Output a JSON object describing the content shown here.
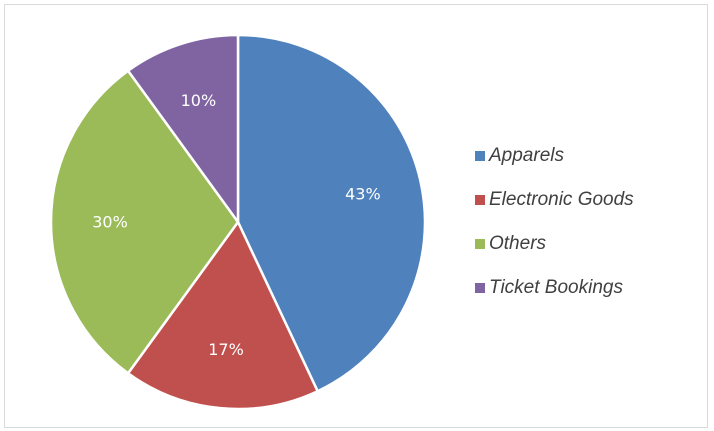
{
  "chart_data": {
    "type": "pie",
    "categories": [
      "Apparels",
      "Electronic Goods",
      "Others",
      "Ticket Bookings"
    ],
    "values": [
      43,
      17,
      30,
      10
    ],
    "labels": [
      "43%",
      "17%",
      "30%",
      "10%"
    ],
    "colors": [
      "#4f81bd",
      "#c0504d",
      "#9bbb59",
      "#8064a2"
    ],
    "start_angle_deg": 0,
    "direction": "clockwise",
    "legend_position": "right",
    "title": ""
  }
}
